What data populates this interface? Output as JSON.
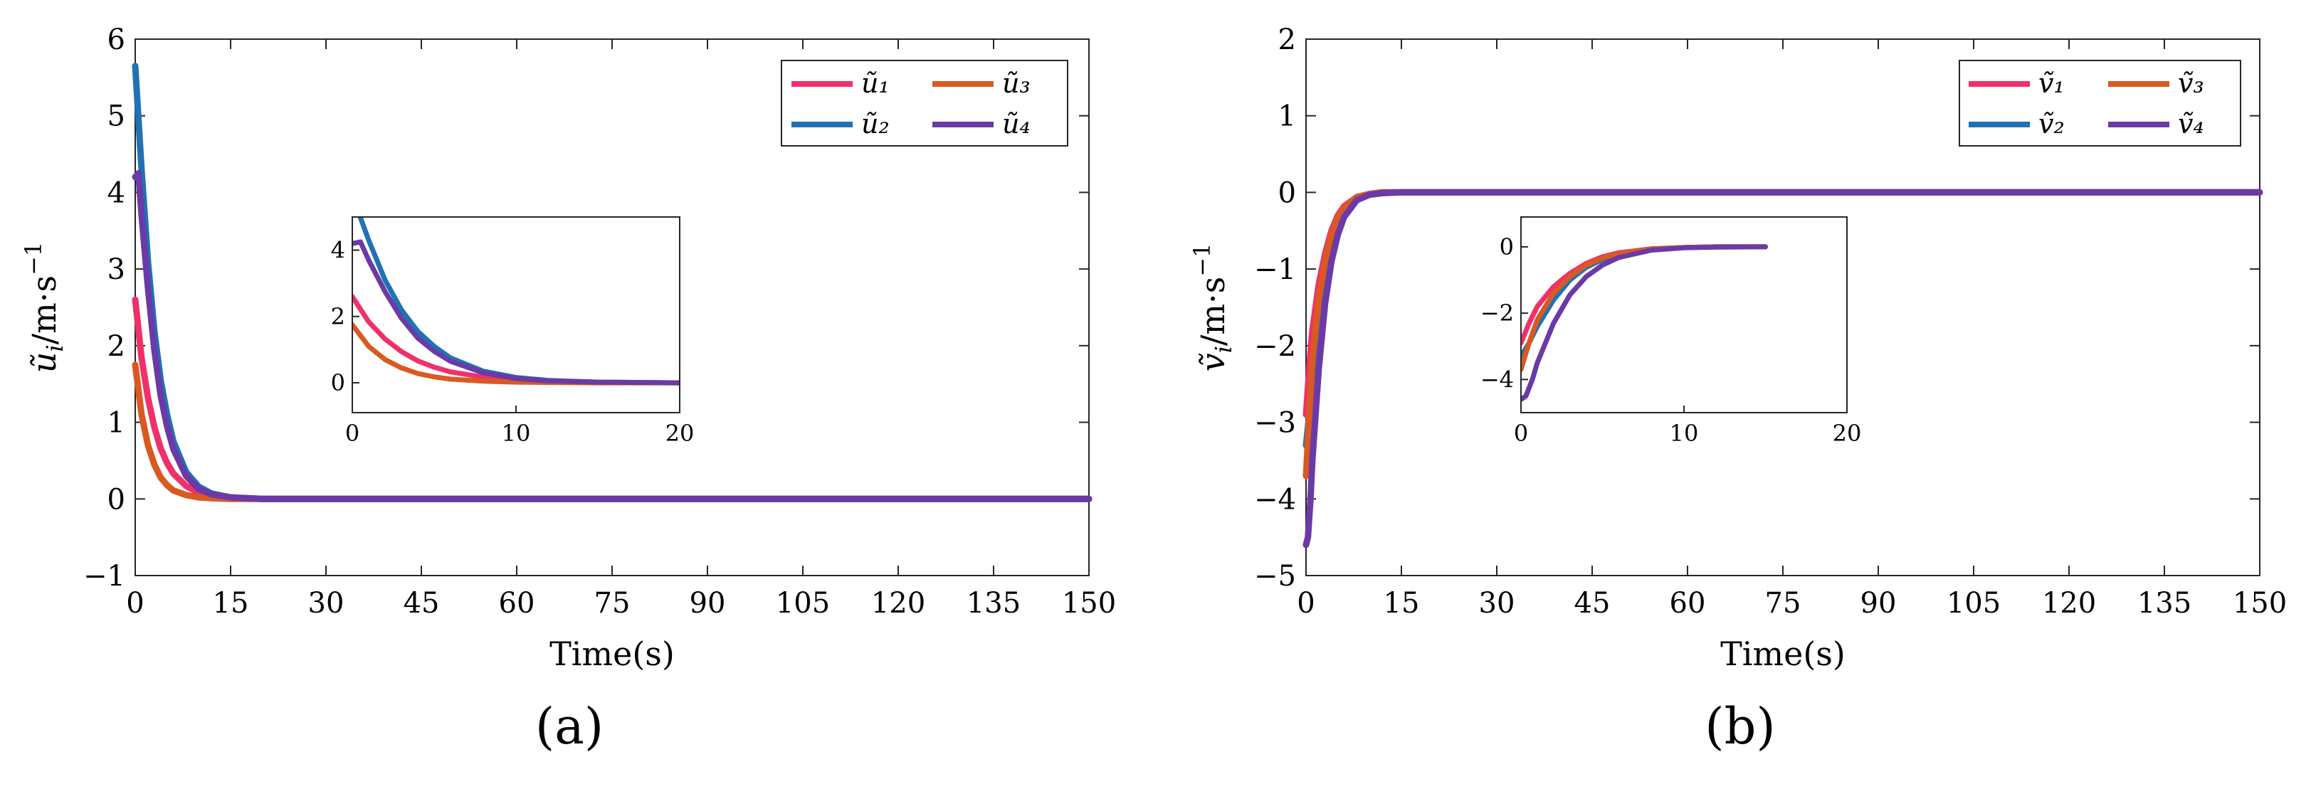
{
  "chart_data": [
    {
      "type": "line",
      "panel_label": "(a)",
      "xlabel": "Time(s)",
      "ylabel": "ũ_i/m·s⁻¹",
      "ylabel_main": "ũ",
      "ylabel_sub": "i",
      "ylabel_unit": "/m·s",
      "ylabel_sup": "−1",
      "xlim": [
        0,
        150
      ],
      "ylim": [
        -1,
        6
      ],
      "xticks": [
        0,
        15,
        30,
        45,
        60,
        75,
        90,
        105,
        120,
        135,
        150
      ],
      "yticks": [
        -1,
        0,
        1,
        2,
        3,
        4,
        5,
        6
      ],
      "ytick_labels": [
        "−1",
        "0",
        "1",
        "2",
        "3",
        "4",
        "5",
        "6"
      ],
      "grid": false,
      "legend_position": "top-right",
      "series": [
        {
          "name": "ũ₁",
          "color": "#f0306a",
          "x": [
            0,
            1,
            2,
            3,
            4,
            5,
            6,
            8,
            10,
            12,
            15,
            20,
            150
          ],
          "y": [
            2.6,
            1.84,
            1.32,
            0.94,
            0.66,
            0.47,
            0.33,
            0.17,
            0.08,
            0.04,
            0.01,
            0.0,
            0.0
          ]
        },
        {
          "name": "ũ₂",
          "color": "#1f72b4",
          "x": [
            0,
            1,
            2,
            3,
            4,
            5,
            6,
            8,
            10,
            12,
            15,
            20,
            150
          ],
          "y": [
            5.65,
            4.3,
            3.1,
            2.2,
            1.55,
            1.1,
            0.75,
            0.35,
            0.16,
            0.07,
            0.02,
            0.0,
            0.0
          ]
        },
        {
          "name": "ũ₃",
          "color": "#d95a20",
          "x": [
            0,
            1,
            2,
            3,
            4,
            5,
            6,
            8,
            10,
            12,
            15,
            20,
            150
          ],
          "y": [
            1.75,
            1.1,
            0.7,
            0.45,
            0.28,
            0.18,
            0.11,
            0.05,
            0.02,
            0.01,
            0.0,
            0.0,
            0.0
          ]
        },
        {
          "name": "ũ₄",
          "color": "#6b3aa6",
          "x": [
            0,
            0.5,
            1,
            2,
            3,
            4,
            5,
            6,
            8,
            10,
            12,
            15,
            20,
            150
          ],
          "y": [
            4.2,
            4.25,
            3.7,
            2.75,
            1.95,
            1.35,
            0.95,
            0.65,
            0.3,
            0.13,
            0.06,
            0.02,
            0.0,
            0.0
          ]
        }
      ],
      "inset": {
        "xlim": [
          0,
          20
        ],
        "ylim": [
          -0.9,
          5.0
        ],
        "xticks": [
          0,
          10,
          20
        ],
        "yticks": [
          0,
          2,
          4
        ]
      }
    },
    {
      "type": "line",
      "panel_label": "(b)",
      "xlabel": "Time(s)",
      "ylabel": "ṽ_i/m·s⁻¹",
      "ylabel_main": "ṽ",
      "ylabel_sub": "i",
      "ylabel_unit": "/m·s",
      "ylabel_sup": "−1",
      "xlim": [
        0,
        150
      ],
      "ylim": [
        -5,
        2
      ],
      "xticks": [
        0,
        15,
        30,
        45,
        60,
        75,
        90,
        105,
        120,
        135,
        150
      ],
      "yticks": [
        -5,
        -4,
        -3,
        -2,
        -1,
        0,
        1,
        2
      ],
      "ytick_labels": [
        "−5",
        "−4",
        "−3",
        "−2",
        "−1",
        "0",
        "1",
        "2"
      ],
      "grid": false,
      "legend_position": "top-right",
      "series": [
        {
          "name": "ṽ₁",
          "color": "#f0306a",
          "x": [
            0,
            0.5,
            1,
            2,
            3,
            4,
            5,
            6,
            8,
            10,
            12,
            15,
            150
          ],
          "y": [
            -2.9,
            -2.3,
            -1.8,
            -1.2,
            -0.8,
            -0.5,
            -0.3,
            -0.18,
            -0.06,
            -0.02,
            0.0,
            0.0,
            0.0
          ]
        },
        {
          "name": "ṽ₂",
          "color": "#1f72b4",
          "x": [
            0,
            0.5,
            1,
            2,
            3,
            4,
            5,
            6,
            8,
            10,
            12,
            15,
            150
          ],
          "y": [
            -3.3,
            -2.9,
            -2.4,
            -1.6,
            -1.0,
            -0.62,
            -0.38,
            -0.22,
            -0.07,
            -0.02,
            0.0,
            0.0,
            0.0
          ]
        },
        {
          "name": "ṽ₃",
          "color": "#d95a20",
          "x": [
            0,
            0.5,
            1,
            2,
            3,
            4,
            5,
            6,
            8,
            10,
            12,
            15,
            150
          ],
          "y": [
            -3.7,
            -2.9,
            -2.2,
            -1.4,
            -0.9,
            -0.55,
            -0.34,
            -0.2,
            -0.06,
            -0.02,
            0.0,
            0.0,
            0.0
          ]
        },
        {
          "name": "ṽ₄",
          "color": "#6b3aa6",
          "x": [
            0,
            0.3,
            0.7,
            1,
            2,
            3,
            4,
            5,
            6,
            8,
            10,
            12,
            15,
            150
          ],
          "y": [
            -4.6,
            -4.5,
            -4.0,
            -3.5,
            -2.3,
            -1.45,
            -0.9,
            -0.55,
            -0.32,
            -0.1,
            -0.03,
            -0.01,
            0.0,
            0.0
          ]
        }
      ],
      "inset": {
        "xlim": [
          0,
          20
        ],
        "ylim": [
          -5.0,
          0.9
        ],
        "xticks": [
          0,
          10,
          20
        ],
        "yticks": [
          -4,
          -2,
          0
        ]
      }
    }
  ]
}
